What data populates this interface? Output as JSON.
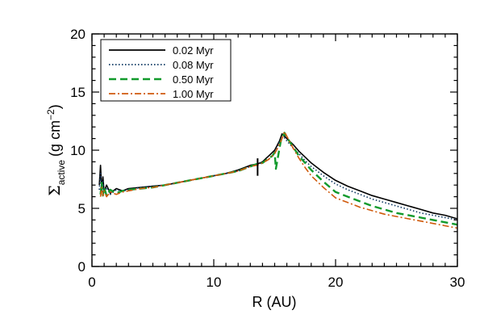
{
  "chart_data": {
    "type": "line",
    "title": "",
    "xlabel": "R (AU)",
    "ylabel": {
      "symbol": "Σ",
      "subscript": "active",
      "units_prefix": "(g cm",
      "units_exp": "−2",
      "units_suffix": ")"
    },
    "xlim": [
      0,
      30
    ],
    "ylim": [
      0,
      20
    ],
    "x_ticks": [
      0,
      10,
      20,
      30
    ],
    "y_ticks": [
      0,
      5,
      10,
      15,
      20
    ],
    "x_minor_step": 1,
    "y_minor_step": 1,
    "grid": false,
    "legend_position": "top-left",
    "series": [
      {
        "name": "0.02 Myr",
        "color": "#000000",
        "dash": "",
        "x": [
          0.6,
          0.7,
          0.8,
          0.9,
          1.0,
          1.2,
          1.5,
          2,
          2.5,
          3,
          4,
          5,
          6,
          7,
          8,
          9,
          10,
          11,
          12,
          12.5,
          13,
          13.5,
          13.8,
          14,
          14.3,
          14.6,
          15,
          15.2,
          15.4,
          15.6,
          15.8,
          16,
          16.5,
          17,
          17.5,
          18,
          18.5,
          19,
          20,
          21,
          22,
          23,
          24,
          25,
          26,
          27,
          28,
          29,
          30
        ],
        "y": [
          7.0,
          8.7,
          6.6,
          7.7,
          6.4,
          7.0,
          6.3,
          6.7,
          6.5,
          6.7,
          6.8,
          6.9,
          7.0,
          7.2,
          7.4,
          7.6,
          7.8,
          8.0,
          8.3,
          8.5,
          8.7,
          8.8,
          8.9,
          9.0,
          9.3,
          9.6,
          10.0,
          10.4,
          10.8,
          11.4,
          11.2,
          11.0,
          10.5,
          9.9,
          9.4,
          8.9,
          8.5,
          8.1,
          7.4,
          6.9,
          6.5,
          6.1,
          5.8,
          5.5,
          5.2,
          4.9,
          4.6,
          4.4,
          4.1
        ]
      },
      {
        "name": "0.08 Myr",
        "color": "#0a3560",
        "dash": "1.5,2.5",
        "x": [
          0.6,
          0.7,
          0.8,
          0.9,
          1.0,
          1.2,
          1.5,
          2,
          2.5,
          3,
          4,
          5,
          6,
          7,
          8,
          9,
          10,
          11,
          12,
          12.5,
          13,
          13.5,
          14,
          14.5,
          15,
          15.4,
          15.7,
          16,
          16.5,
          17,
          17.5,
          18,
          19,
          20,
          21,
          22,
          23,
          24,
          25,
          26,
          27,
          28,
          29,
          30
        ],
        "y": [
          6.6,
          8.0,
          6.4,
          7.3,
          6.3,
          6.8,
          6.2,
          6.6,
          6.5,
          6.6,
          6.8,
          6.9,
          7.0,
          7.2,
          7.4,
          7.6,
          7.8,
          8.0,
          8.2,
          8.4,
          8.6,
          8.8,
          8.9,
          9.2,
          9.8,
          10.7,
          11.2,
          10.8,
          10.2,
          9.7,
          9.1,
          8.6,
          7.8,
          7.1,
          6.6,
          6.2,
          5.8,
          5.5,
          5.2,
          4.9,
          4.6,
          4.4,
          4.2,
          4.0
        ]
      },
      {
        "name": "0.50 Myr",
        "color": "#119a2c",
        "dash": "9,5",
        "x": [
          0.7,
          0.8,
          0.9,
          1.0,
          1.2,
          1.5,
          2,
          2.5,
          3,
          4,
          5,
          6,
          7,
          8,
          9,
          10,
          11,
          12,
          12.5,
          13,
          13.5,
          14,
          14.5,
          14.8,
          15.0,
          15.1,
          15.5,
          15.8,
          16.0,
          16.5,
          17,
          17.5,
          18,
          19,
          20,
          21,
          22,
          23,
          24,
          25,
          26,
          27,
          28,
          29,
          30
        ],
        "y": [
          6.2,
          7.2,
          6.1,
          6.8,
          6.1,
          6.6,
          6.3,
          6.5,
          6.6,
          6.7,
          6.8,
          7.0,
          7.2,
          7.4,
          7.6,
          7.8,
          8.0,
          8.2,
          8.4,
          8.6,
          8.8,
          8.9,
          9.3,
          9.5,
          9.8,
          8.4,
          10.8,
          11.5,
          11.1,
          10.3,
          9.5,
          8.9,
          8.3,
          7.3,
          6.4,
          6.0,
          5.6,
          5.2,
          4.9,
          4.6,
          4.4,
          4.2,
          4.0,
          3.8,
          3.6
        ]
      },
      {
        "name": "1.00 Myr",
        "color": "#d05a0c",
        "dash": "8,3,2,3",
        "x": [
          0.7,
          0.8,
          0.9,
          1.0,
          1.2,
          1.5,
          2,
          2.5,
          3,
          4,
          5,
          6,
          7,
          8,
          9,
          10,
          11,
          12,
          12.5,
          13,
          13.5,
          14,
          14.5,
          15,
          15.3,
          15.6,
          15.8,
          16,
          16.5,
          17,
          17.5,
          18,
          18.5,
          19,
          20,
          21,
          22,
          23,
          24,
          25,
          26,
          27,
          28,
          29,
          30
        ],
        "y": [
          6.0,
          6.8,
          6.1,
          6.5,
          6.0,
          6.4,
          6.2,
          6.4,
          6.5,
          6.7,
          6.8,
          7.0,
          7.2,
          7.4,
          7.6,
          7.8,
          8.0,
          8.2,
          8.4,
          8.6,
          8.7,
          8.9,
          9.2,
          9.7,
          10.3,
          11.0,
          11.6,
          11.2,
          10.2,
          9.3,
          8.5,
          7.8,
          7.3,
          6.8,
          5.9,
          5.5,
          5.1,
          4.8,
          4.5,
          4.3,
          4.1,
          3.9,
          3.7,
          3.5,
          3.3
        ]
      }
    ],
    "annotations": [
      {
        "type": "vertical-tick",
        "x": 13.6,
        "y_from": 7.8,
        "y_to": 9.3,
        "color": "#000000"
      }
    ]
  }
}
